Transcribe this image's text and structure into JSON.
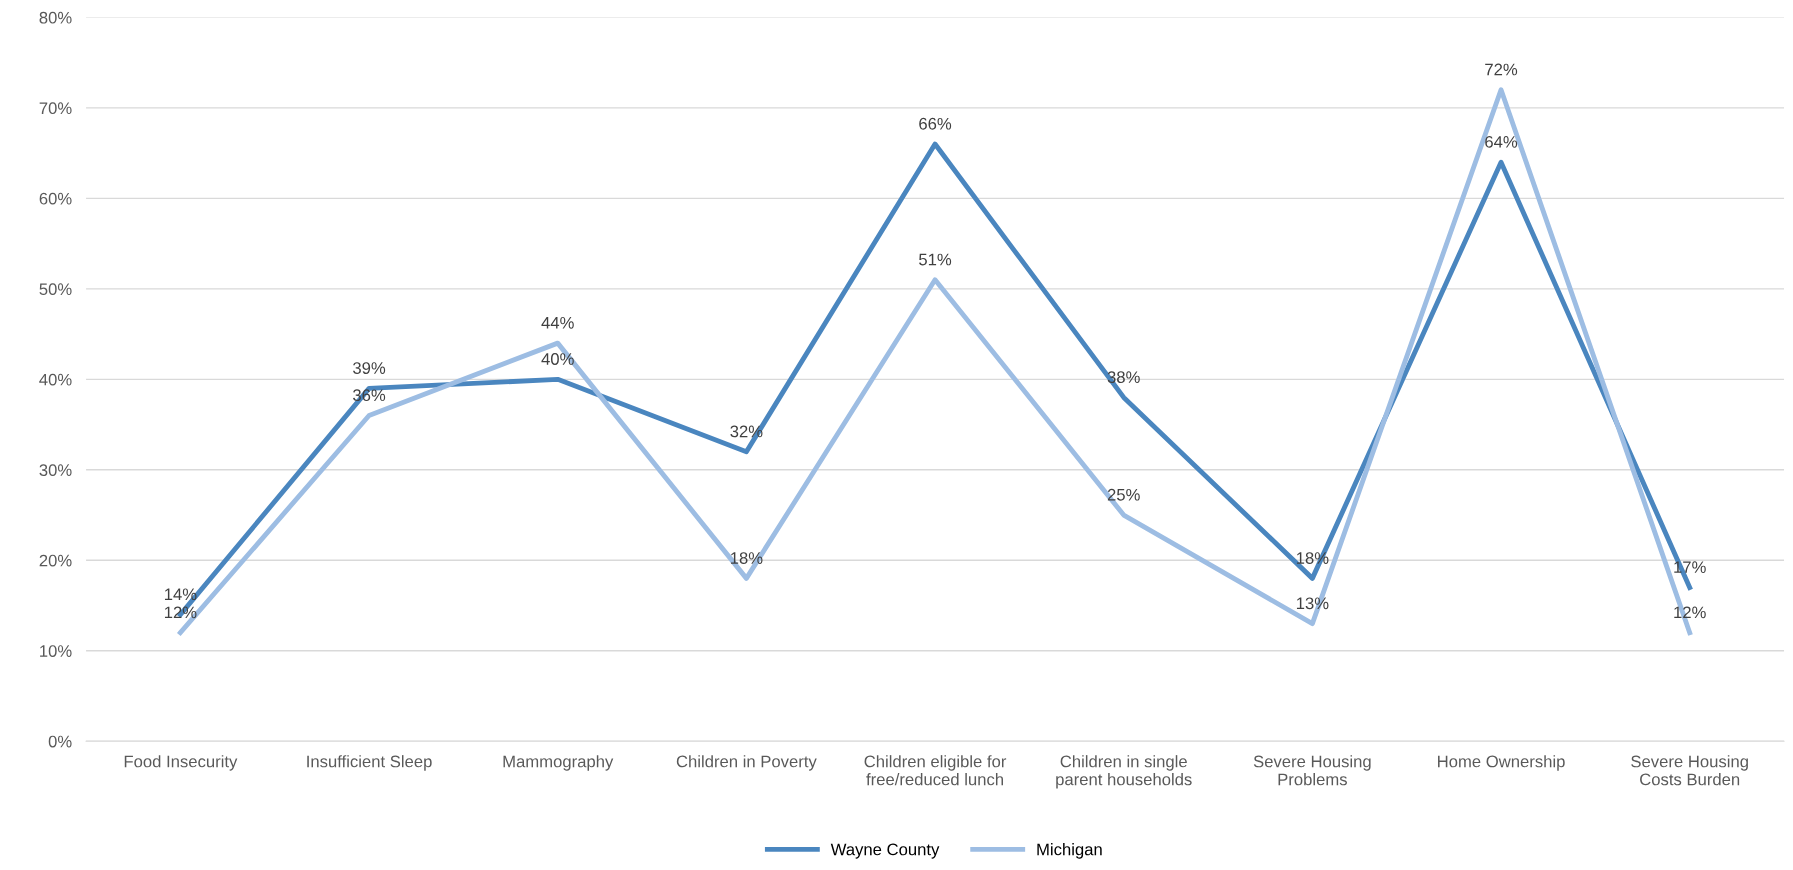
{
  "chart_data": {
    "type": "line",
    "categories": [
      "Food Insecurity",
      "Insufficient Sleep",
      "Mammography",
      "Children in Poverty",
      "Children eligible for\nfree/reduced lunch",
      "Children in single\nparent households",
      "Severe Housing\nProblems",
      "Home Ownership",
      "Severe Housing\nCosts Burden"
    ],
    "series": [
      {
        "name": "Wayne County",
        "color": "#4a86bf",
        "values": [
          14,
          39,
          40,
          32,
          66,
          38,
          18,
          64,
          17
        ],
        "value_labels": [
          "14%",
          "39%",
          "40%",
          "32%",
          "66%",
          "38%",
          "18%",
          "64%",
          "17%"
        ]
      },
      {
        "name": "Michigan",
        "color": "#9dbde3",
        "values": [
          12,
          36,
          44,
          18,
          51,
          25,
          13,
          72,
          12
        ],
        "value_labels": [
          "12%",
          "36%",
          "44%",
          "18%",
          "51%",
          "25%",
          "13%",
          "72%",
          "12%"
        ]
      }
    ],
    "ylim": [
      0,
      80
    ],
    "yticks": [
      {
        "value": 0,
        "label": "0%"
      },
      {
        "value": 10,
        "label": "10%"
      },
      {
        "value": 20,
        "label": "20%"
      },
      {
        "value": 30,
        "label": "30%"
      },
      {
        "value": 40,
        "label": "40%"
      },
      {
        "value": 50,
        "label": "50%"
      },
      {
        "value": 60,
        "label": "60%"
      },
      {
        "value": 70,
        "label": "70%"
      },
      {
        "value": 80,
        "label": "80%"
      }
    ],
    "grid": "y",
    "legend": "bottom",
    "marker": "none",
    "line_style": "solid"
  }
}
